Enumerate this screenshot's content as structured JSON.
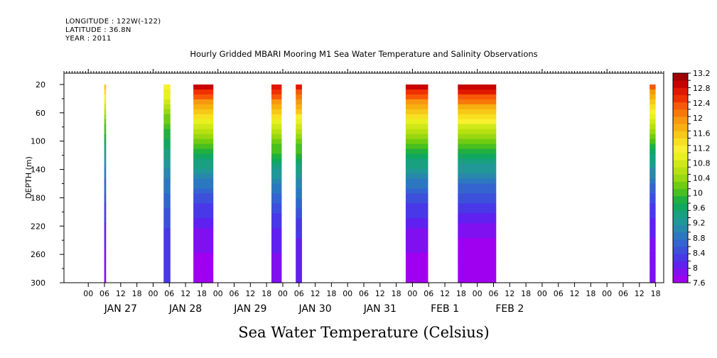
{
  "header": {
    "longitude": "LONGITUDE : 122W(-122)",
    "latitude": "LATITUDE : 36.8N",
    "year": "YEAR : 2011"
  },
  "chart_data": {
    "type": "heatmap",
    "title": "Hourly Gridded MBARI Mooring M1 Sea Water Temperature and Salinity Observations",
    "subtitle": "Sea Water Temperature (Celsius)",
    "ylabel": "DEPTH (m)",
    "xlabel": "",
    "y_reversed": true,
    "ylim": [
      300,
      4
    ],
    "y_ticks": [
      20,
      60,
      100,
      140,
      180,
      220,
      260,
      300
    ],
    "x_range_hours": [
      -9,
      213
    ],
    "x_hour_ticks": [
      {
        "h": 0,
        "label": "00"
      },
      {
        "h": 6,
        "label": "06"
      },
      {
        "h": 12,
        "label": "12"
      },
      {
        "h": 18,
        "label": "18"
      },
      {
        "h": 24,
        "label": "00"
      },
      {
        "h": 30,
        "label": "06"
      },
      {
        "h": 36,
        "label": "12"
      },
      {
        "h": 42,
        "label": "18"
      },
      {
        "h": 48,
        "label": "00"
      },
      {
        "h": 54,
        "label": "06"
      },
      {
        "h": 60,
        "label": "12"
      },
      {
        "h": 66,
        "label": "18"
      },
      {
        "h": 72,
        "label": "00"
      },
      {
        "h": 78,
        "label": "06"
      },
      {
        "h": 84,
        "label": "12"
      },
      {
        "h": 90,
        "label": "18"
      },
      {
        "h": 96,
        "label": "00"
      },
      {
        "h": 102,
        "label": "06"
      },
      {
        "h": 108,
        "label": "12"
      },
      {
        "h": 114,
        "label": "18"
      },
      {
        "h": 120,
        "label": "00"
      },
      {
        "h": 126,
        "label": "06"
      },
      {
        "h": 132,
        "label": "12"
      },
      {
        "h": 138,
        "label": "18"
      },
      {
        "h": 144,
        "label": "00"
      },
      {
        "h": 150,
        "label": "06"
      },
      {
        "h": 156,
        "label": "12"
      },
      {
        "h": 162,
        "label": "18"
      },
      {
        "h": 168,
        "label": "00"
      },
      {
        "h": 174,
        "label": "06"
      },
      {
        "h": 180,
        "label": "12"
      },
      {
        "h": 186,
        "label": "18"
      },
      {
        "h": 192,
        "label": "00"
      },
      {
        "h": 198,
        "label": "06"
      },
      {
        "h": 204,
        "label": "12"
      },
      {
        "h": 210,
        "label": "18"
      }
    ],
    "x_day_labels": [
      {
        "h": 12,
        "label": "JAN 27"
      },
      {
        "h": 36,
        "label": "JAN 28"
      },
      {
        "h": 60,
        "label": "JAN 29"
      },
      {
        "h": 84,
        "label": "JAN 30"
      },
      {
        "h": 108,
        "label": "JAN 31"
      },
      {
        "h": 132,
        "label": "FEB  1"
      },
      {
        "h": 156,
        "label": "FEB  2"
      }
    ],
    "colorbar": {
      "min": 7.6,
      "max": 13.2,
      "step": 0.2,
      "labels": [
        "13.2",
        "12.8",
        "12.4",
        "12",
        "11.6",
        "11.2",
        "10.8",
        "10.4",
        "10",
        "9.6",
        "9.2",
        "8.8",
        "8.4",
        "8",
        "7.6"
      ],
      "colors": [
        "#a000f0",
        "#8010f0",
        "#6020f0",
        "#4838e8",
        "#3c50dc",
        "#3464d0",
        "#2c78c0",
        "#2888ac",
        "#209898",
        "#18a080",
        "#10a860",
        "#20b040",
        "#48c020",
        "#70cc10",
        "#98d810",
        "#b8e010",
        "#d0e818",
        "#e8f020",
        "#f8f030",
        "#f8e020",
        "#f8c818",
        "#f8b010",
        "#f89810",
        "#f87808",
        "#f85808",
        "#f03000",
        "#e01800",
        "#c80000",
        "#a00000"
      ]
    },
    "segments": [
      {
        "start": 5.9,
        "end": 6.6,
        "t_surface": 11.6,
        "t_bottom": 7.9
      },
      {
        "start": 27.9,
        "end": 30.4,
        "t_surface": 11.3,
        "t_bottom": 8.2
      },
      {
        "start": 38.9,
        "end": 46.3,
        "t_surface": 13.0,
        "t_bottom": 7.7
      },
      {
        "start": 67.8,
        "end": 71.6,
        "t_surface": 12.9,
        "t_bottom": 7.9
      },
      {
        "start": 76.8,
        "end": 79.1,
        "t_surface": 12.8,
        "t_bottom": 8.0
      },
      {
        "start": 117.5,
        "end": 125.8,
        "t_surface": 13.0,
        "t_bottom": 7.7
      },
      {
        "start": 136.8,
        "end": 151.0,
        "t_surface": 13.1,
        "t_bottom": 7.6
      },
      {
        "start": 207.8,
        "end": 210.0,
        "t_surface": 12.4,
        "t_bottom": 7.8
      }
    ]
  }
}
